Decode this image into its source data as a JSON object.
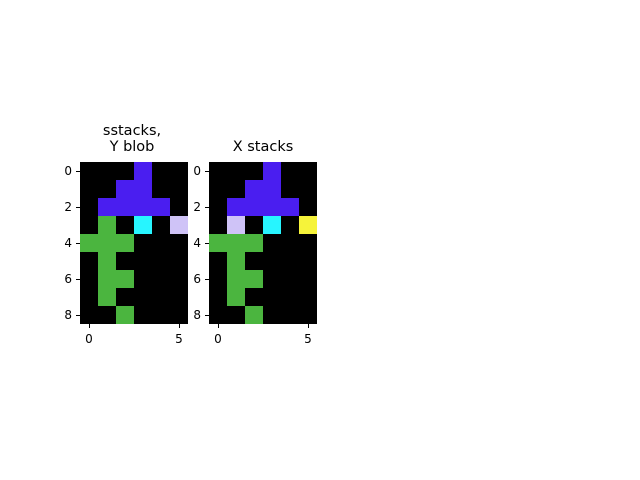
{
  "palette": {
    "0": "#000000",
    "1": "#4a1ef0",
    "2": "#cfc3f7",
    "3": "#27f5ff",
    "4": "#4bb53f",
    "5": "#f6f33a"
  },
  "panels": [
    {
      "title": "sstacks,\nY blob",
      "grid": [
        [
          0,
          0,
          0,
          1,
          0,
          0
        ],
        [
          0,
          0,
          1,
          1,
          0,
          0
        ],
        [
          0,
          1,
          1,
          1,
          1,
          0
        ],
        [
          0,
          4,
          0,
          3,
          0,
          2
        ],
        [
          4,
          4,
          4,
          0,
          0,
          0
        ],
        [
          0,
          4,
          0,
          0,
          0,
          0
        ],
        [
          0,
          4,
          4,
          0,
          0,
          0
        ],
        [
          0,
          4,
          0,
          0,
          0,
          0
        ],
        [
          0,
          0,
          4,
          0,
          0,
          0
        ]
      ],
      "y_ticks": [
        "0",
        "2",
        "4",
        "6",
        "8"
      ],
      "x_ticks": [
        "0",
        "5"
      ]
    },
    {
      "title": "X stacks",
      "grid": [
        [
          0,
          0,
          0,
          1,
          0,
          0
        ],
        [
          0,
          0,
          1,
          1,
          0,
          0
        ],
        [
          0,
          1,
          1,
          1,
          1,
          0
        ],
        [
          0,
          2,
          0,
          3,
          0,
          5
        ],
        [
          4,
          4,
          4,
          0,
          0,
          0
        ],
        [
          0,
          4,
          0,
          0,
          0,
          0
        ],
        [
          0,
          4,
          4,
          0,
          0,
          0
        ],
        [
          0,
          4,
          0,
          0,
          0,
          0
        ],
        [
          0,
          0,
          4,
          0,
          0,
          0
        ]
      ],
      "y_ticks": [
        "0",
        "2",
        "4",
        "6",
        "8"
      ],
      "x_ticks": [
        "0",
        "5"
      ]
    }
  ]
}
